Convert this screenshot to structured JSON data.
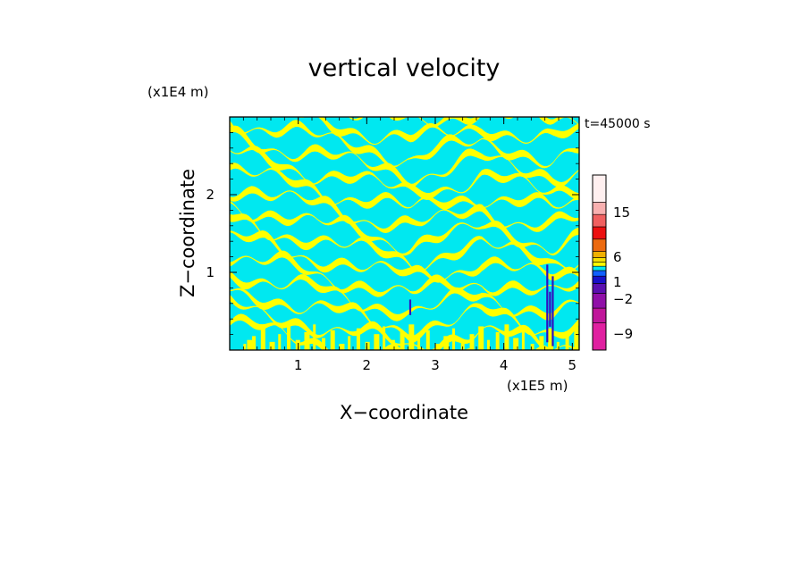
{
  "chart_data": {
    "type": "heatmap",
    "title": "vertical velocity",
    "xlabel": "X−coordinate",
    "ylabel": "Z−coordinate",
    "x_unit": "(x1E5 m)",
    "y_unit": "(x1E4 m)",
    "time_label": "t=45000 s",
    "xlim": [
      0,
      5.1
    ],
    "ylim": [
      0,
      3.0
    ],
    "x_ticks": [
      "1",
      "2",
      "3",
      "4",
      "5"
    ],
    "y_ticks": [
      "1",
      "2"
    ],
    "colorbar": {
      "levels": [
        {
          "color": "#e020a0"
        },
        {
          "color": "#c0169a"
        },
        {
          "color": "#9010a8"
        },
        {
          "color": "#5a10b0"
        },
        {
          "color": "#1810c8"
        },
        {
          "color": "#1060ff"
        },
        {
          "color": "#00e8f0"
        },
        {
          "color": "#ffff00"
        },
        {
          "color": "#f5e000"
        },
        {
          "color": "#f0b000"
        },
        {
          "color": "#ec6a10"
        },
        {
          "color": "#ec1010"
        },
        {
          "color": "#f06060"
        },
        {
          "color": "#f8b0b0"
        },
        {
          "color": "#fff0f0"
        }
      ],
      "tick_labels": [
        "15",
        "6",
        "1",
        "−2",
        "−9"
      ]
    },
    "dominant_colors": {
      "positive": "#ffff00",
      "negative": "#00e8f0",
      "strong_negative": "#3010c0"
    }
  }
}
